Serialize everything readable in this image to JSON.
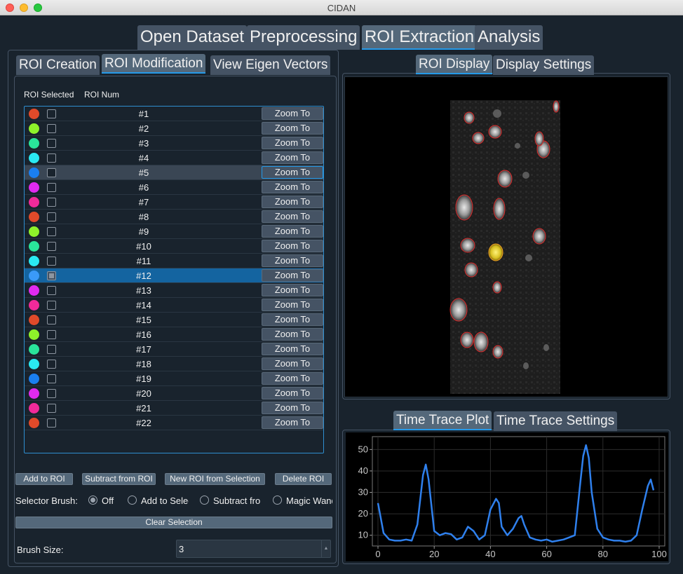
{
  "window": {
    "title": "CIDAN"
  },
  "main_tabs": [
    {
      "label": "Open Dataset",
      "active": false
    },
    {
      "label": "Preprocessing",
      "active": false
    },
    {
      "label": "ROI Extraction",
      "active": true
    },
    {
      "label": "Analysis",
      "active": false
    }
  ],
  "left_tabs": [
    {
      "label": "ROI Creation",
      "active": false
    },
    {
      "label": "ROI Modification",
      "active": true
    },
    {
      "label": "View Eigen Vectors",
      "active": false
    }
  ],
  "right_tabs": [
    {
      "label": "ROI Display",
      "active": true
    },
    {
      "label": "Display Settings",
      "active": false
    }
  ],
  "plot_tabs": [
    {
      "label": "Time Trace Plot",
      "active": true
    },
    {
      "label": "Time Trace Settings",
      "active": false
    }
  ],
  "roi_list": {
    "header_selected": "ROI Selected",
    "header_num": "ROI Num",
    "zoom_label": "Zoom To",
    "rows": [
      {
        "num": "#1",
        "color": "#e04a2a"
      },
      {
        "num": "#2",
        "color": "#8ef22a"
      },
      {
        "num": "#3",
        "color": "#2ae49a"
      },
      {
        "num": "#4",
        "color": "#2ae9f2"
      },
      {
        "num": "#5",
        "color": "#1a7ff0",
        "hover": true
      },
      {
        "num": "#6",
        "color": "#e02af0"
      },
      {
        "num": "#7",
        "color": "#f02a9a"
      },
      {
        "num": "#8",
        "color": "#e04a2a"
      },
      {
        "num": "#9",
        "color": "#8ef22a"
      },
      {
        "num": "#10",
        "color": "#2ae49a"
      },
      {
        "num": "#11",
        "color": "#2ae9f2"
      },
      {
        "num": "#12",
        "color": "#3a9af8",
        "selected": true
      },
      {
        "num": "#13",
        "color": "#e02af0"
      },
      {
        "num": "#14",
        "color": "#f02a9a"
      },
      {
        "num": "#15",
        "color": "#e04a2a"
      },
      {
        "num": "#16",
        "color": "#8ef22a"
      },
      {
        "num": "#17",
        "color": "#2ae49a"
      },
      {
        "num": "#18",
        "color": "#2ae9f2"
      },
      {
        "num": "#19",
        "color": "#1a7ff0"
      },
      {
        "num": "#20",
        "color": "#e02af0"
      },
      {
        "num": "#21",
        "color": "#f02a9a"
      },
      {
        "num": "#22",
        "color": "#e04a2a"
      }
    ]
  },
  "actions": {
    "add": "Add to ROI",
    "subtract": "Subtract from ROI",
    "new_roi": "New ROI from Selection",
    "delete": "Delete ROI"
  },
  "selector": {
    "label": "Selector Brush:",
    "options": [
      "Off",
      "Add to Selection",
      "Subtract from Selection",
      "Magic Wand"
    ],
    "selected_index": 0
  },
  "clear_selection": "Clear Selection",
  "brush_size": {
    "label": "Brush Size:",
    "value": "3"
  },
  "chart_data": {
    "type": "line",
    "title": "",
    "xlabel": "",
    "ylabel": "",
    "xlim": [
      -2,
      102
    ],
    "ylim": [
      5,
      56
    ],
    "xticks": [
      0,
      20,
      40,
      60,
      80,
      100
    ],
    "yticks": [
      10,
      20,
      30,
      40,
      50
    ],
    "grid": true,
    "series": [
      {
        "color": "#2f80ed",
        "x": [
          0,
          2,
          4,
          6,
          8,
          10,
          12,
          14,
          16,
          17,
          18,
          20,
          22,
          24,
          26,
          28,
          30,
          32,
          34,
          36,
          38,
          40,
          42,
          43,
          44,
          46,
          48,
          50,
          51,
          52,
          54,
          56,
          58,
          60,
          62,
          64,
          66,
          68,
          70,
          72,
          73,
          74,
          75,
          76,
          78,
          80,
          82,
          84,
          86,
          88,
          90,
          92,
          94,
          96,
          97,
          98
        ],
        "y": [
          25,
          11,
          8,
          7.5,
          7.5,
          8,
          7.5,
          15,
          38,
          43,
          36,
          12,
          10,
          11,
          10.5,
          8,
          9,
          14,
          12,
          8,
          10,
          22,
          27,
          25,
          14,
          10,
          13,
          18,
          19,
          15,
          9,
          8,
          7.5,
          8,
          7,
          7.5,
          8,
          9,
          10,
          35,
          47,
          52,
          46,
          30,
          13,
          9,
          8,
          7.5,
          7.5,
          7,
          7.5,
          10,
          22,
          33,
          36,
          31
        ]
      }
    ]
  }
}
